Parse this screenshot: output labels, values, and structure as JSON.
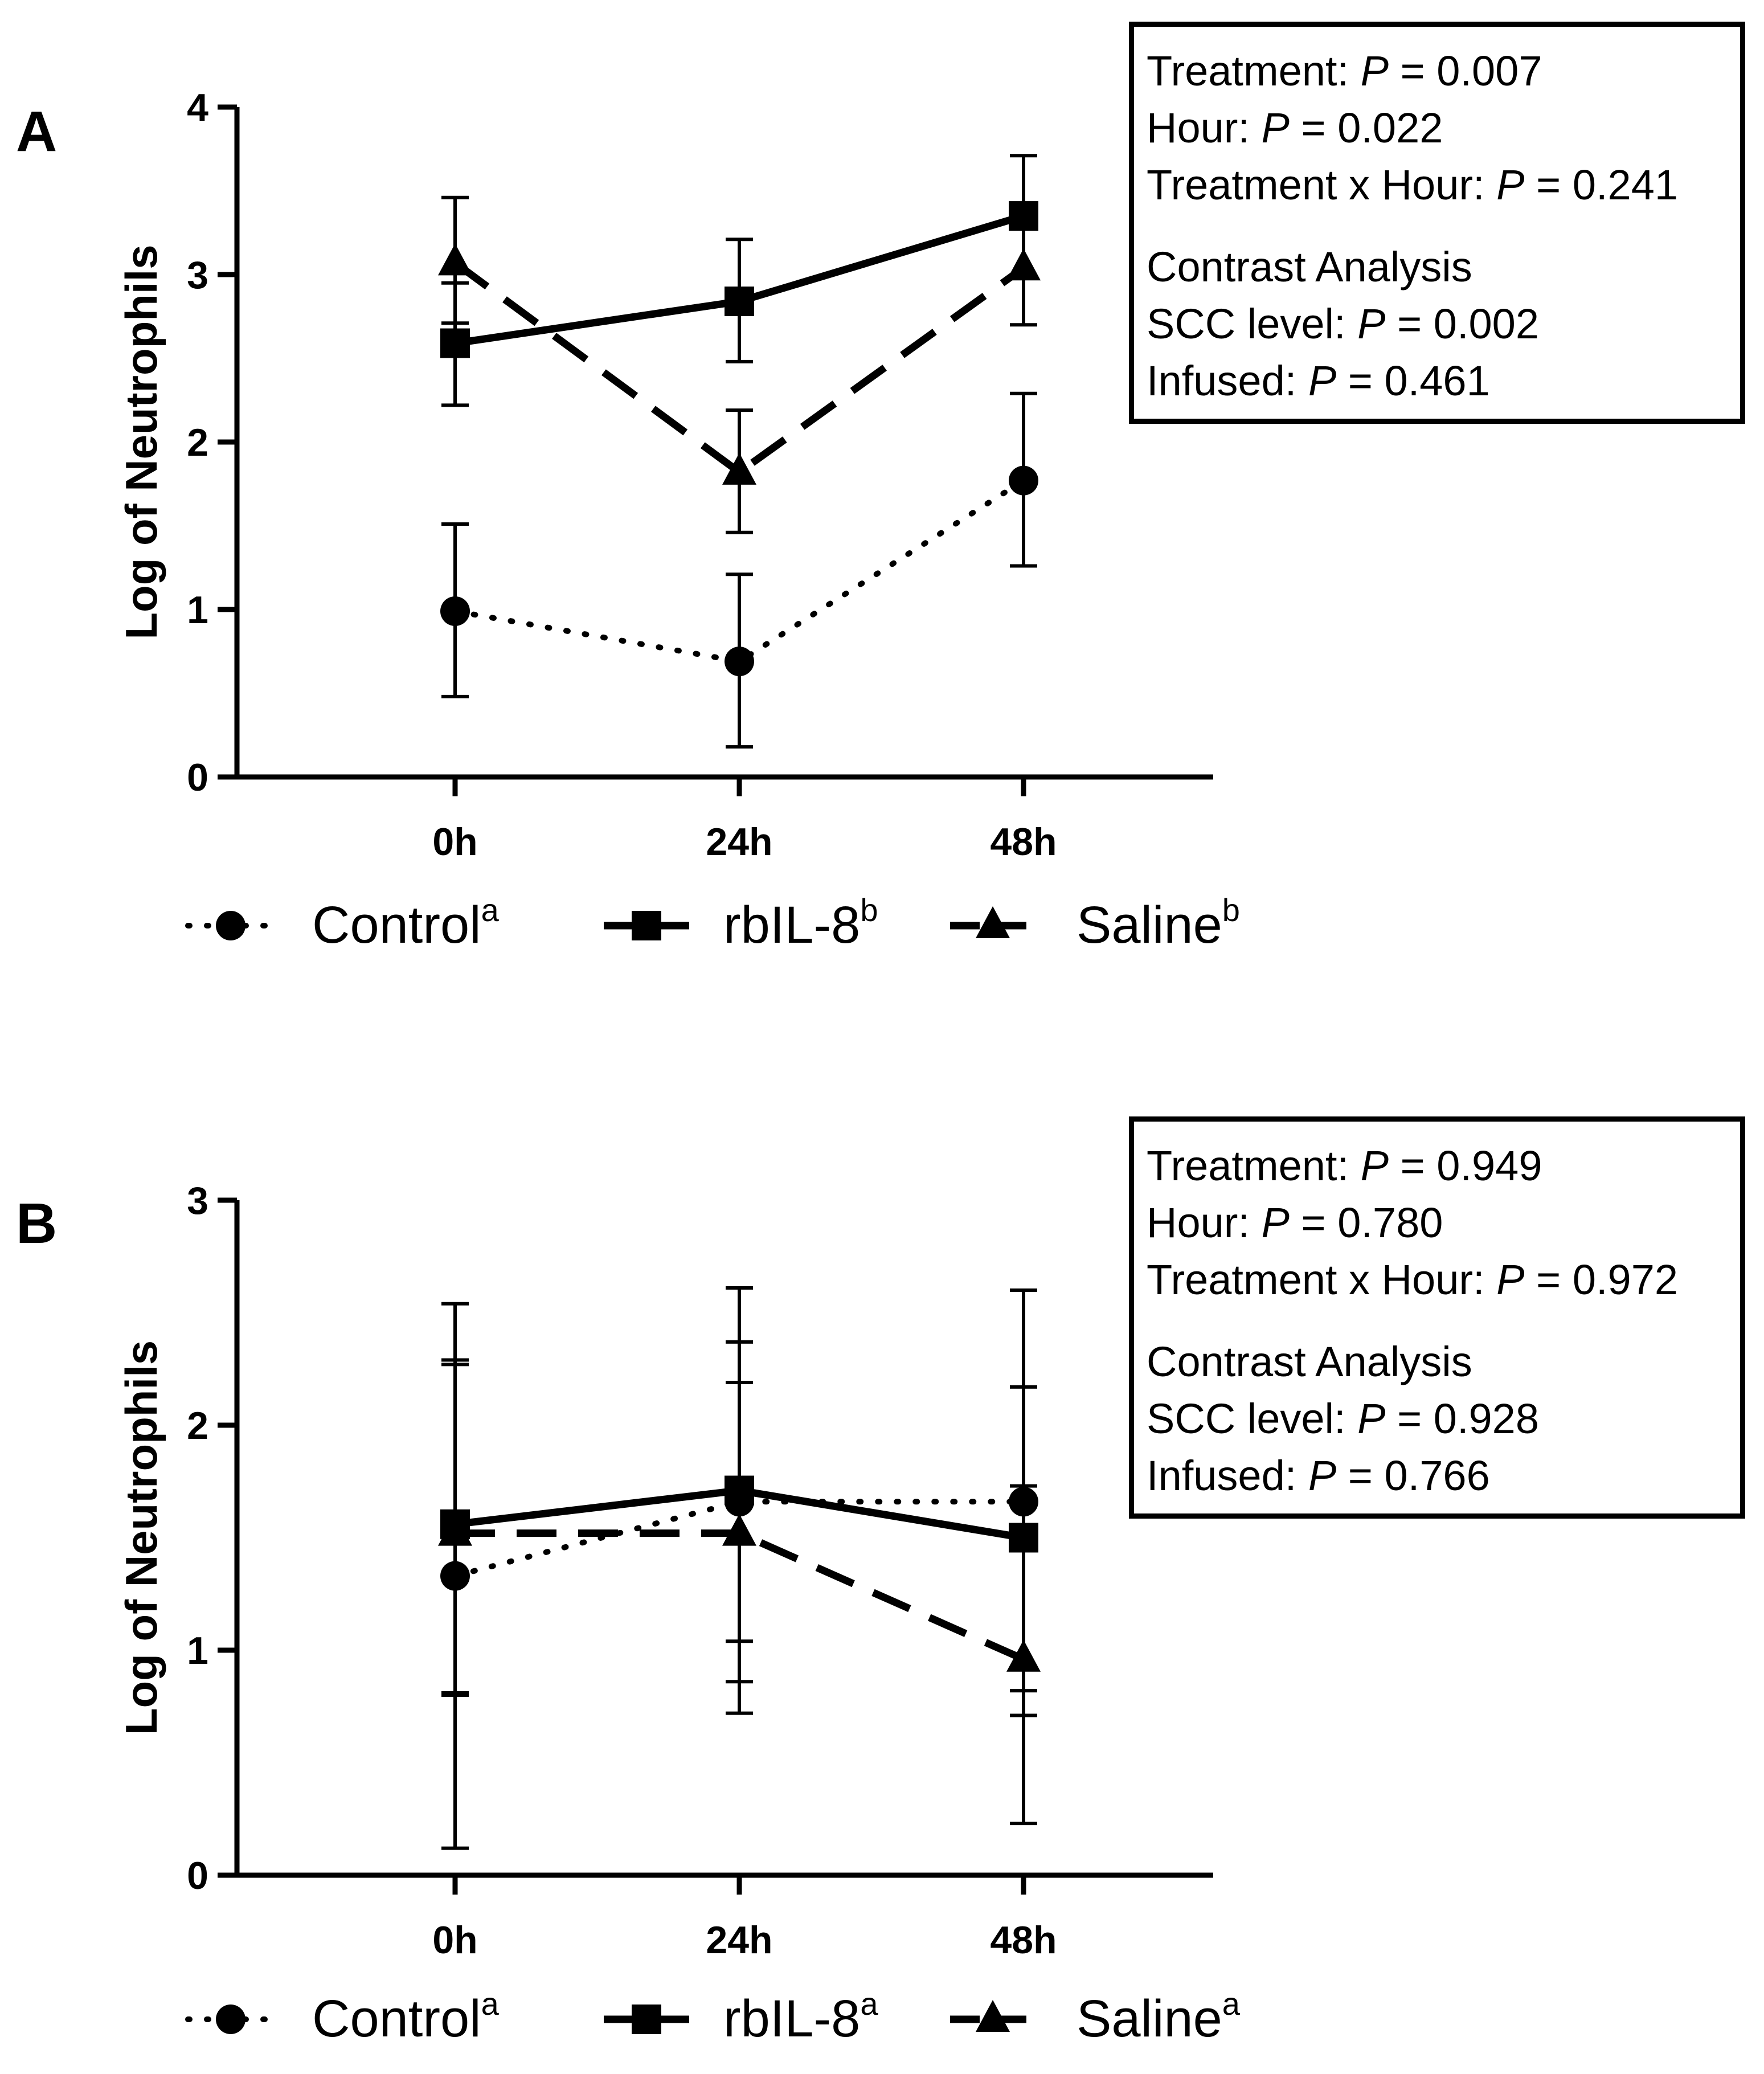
{
  "chart_data": [
    {
      "type": "line",
      "panel_label": "A",
      "ylabel": "Log of Neutrophils",
      "xlabel": "",
      "categories": [
        "0h",
        "24h",
        "48h"
      ],
      "ylim": [
        0,
        4
      ],
      "yticks": [
        "0",
        "1",
        "2",
        "3",
        "4"
      ],
      "series": [
        {
          "name": "Control",
          "superscript": "a",
          "marker": "circle",
          "line_style": "dotted",
          "values": [
            0.99,
            0.69,
            1.77
          ],
          "error_low": [
            0.48,
            0.18,
            1.26
          ],
          "error_high": [
            1.51,
            1.21,
            2.29
          ]
        },
        {
          "name": "rbIL-8",
          "superscript": "b",
          "marker": "square",
          "line_style": "solid",
          "values": [
            2.59,
            2.84,
            3.35
          ],
          "error_low": [
            2.22,
            2.48,
            2.98
          ],
          "error_high": [
            2.95,
            3.21,
            3.71
          ]
        },
        {
          "name": "Saline",
          "superscript": "b",
          "marker": "triangle",
          "line_style": "dashed",
          "values": [
            3.07,
            1.82,
            3.04
          ],
          "error_low": [
            2.71,
            1.46,
            2.7
          ],
          "error_high": [
            3.46,
            2.19,
            3.41
          ]
        }
      ],
      "stats": [
        {
          "label": "Treatment: ",
          "value": " = 0.007"
        },
        {
          "label": "Hour: ",
          "value": " = 0.022"
        },
        {
          "label": "Treatment x Hour: ",
          "value": " = 0.241"
        },
        {
          "label": "Contrast Analysis",
          "value": ""
        },
        {
          "label": "SCC level: ",
          "value": " = 0.002"
        },
        {
          "label": "Infused: ",
          "value": " = 0.461"
        }
      ]
    },
    {
      "type": "line",
      "panel_label": "B",
      "ylabel": "Log of Neutrophils",
      "xlabel": "",
      "categories": [
        "0h",
        "24h",
        "48h"
      ],
      "ylim": [
        0,
        3
      ],
      "yticks": [
        "0",
        "1",
        "2",
        "3"
      ],
      "series": [
        {
          "name": "Control",
          "superscript": "a",
          "marker": "circle",
          "line_style": "dotted",
          "values": [
            1.33,
            1.66,
            1.66
          ],
          "error_low": [
            0.12,
            0.72,
            0.71
          ],
          "error_high": [
            2.54,
            2.61,
            2.6
          ]
        },
        {
          "name": "rbIL-8",
          "superscript": "a",
          "marker": "square",
          "line_style": "solid",
          "values": [
            1.56,
            1.71,
            1.5
          ],
          "error_low": [
            0.8,
            1.04,
            0.82
          ],
          "error_high": [
            2.27,
            2.37,
            2.17
          ]
        },
        {
          "name": "Saline",
          "superscript": "a",
          "marker": "triangle",
          "line_style": "dashed",
          "values": [
            1.52,
            1.52,
            0.96
          ],
          "error_low": [
            0.81,
            0.86,
            0.23
          ],
          "error_high": [
            2.29,
            2.19,
            1.73
          ]
        }
      ],
      "stats": [
        {
          "label": "Treatment: ",
          "value": " = 0.949"
        },
        {
          "label": "Hour: ",
          "value": " = 0.780"
        },
        {
          "label": "Treatment x Hour: ",
          "value": " = 0.972"
        },
        {
          "label": "Contrast Analysis",
          "value": ""
        },
        {
          "label": "SCC level: ",
          "value": " = 0.928"
        },
        {
          "label": "Infused: ",
          "value": " = 0.766"
        }
      ]
    }
  ],
  "p_symbol": "P"
}
